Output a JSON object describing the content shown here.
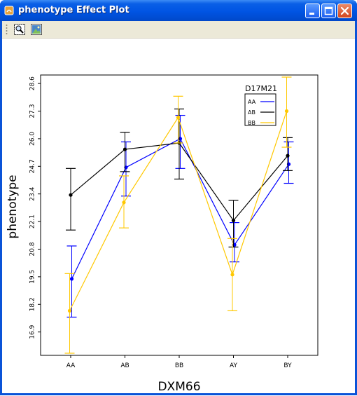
{
  "window": {
    "title": "phenotype Effect Plot",
    "toolbar": {
      "tools": [
        {
          "name": "zoom-tool-icon"
        },
        {
          "name": "save-image-icon"
        }
      ]
    }
  },
  "chart_data": {
    "type": "line",
    "title": "",
    "xlabel": "DXM66",
    "ylabel": "phenotype",
    "categories": [
      "AA",
      "AB",
      "BB",
      "AY",
      "BY"
    ],
    "yticks": [
      "16.9",
      "18.2",
      "19.5",
      "20.8",
      "22.1",
      "23.4",
      "24.7",
      "26.0",
      "27.3",
      "28.6"
    ],
    "ylim": [
      15.8,
      29.0
    ],
    "legend": {
      "title": "D17M21",
      "placement": "top-right"
    },
    "series": [
      {
        "name": "AA",
        "color": "#0000ff",
        "values": [
          19.4,
          24.65,
          26.0,
          21.0,
          24.8
        ],
        "err_low": [
          17.6,
          23.3,
          24.6,
          20.2,
          23.9
        ],
        "err_high": [
          20.95,
          25.85,
          27.1,
          22.05,
          25.85
        ]
      },
      {
        "name": "AB",
        "color": "#000000",
        "values": [
          23.35,
          25.5,
          25.8,
          22.15,
          25.2
        ],
        "err_low": [
          21.7,
          24.45,
          24.1,
          20.9,
          24.5
        ],
        "err_high": [
          24.6,
          26.3,
          27.4,
          23.1,
          26.05
        ]
      },
      {
        "name": "BB",
        "color": "#ffc800",
        "values": [
          17.9,
          23.0,
          27.0,
          19.6,
          27.3
        ],
        "err_low": [
          15.9,
          21.8,
          25.8,
          17.9,
          25.6
        ],
        "err_high": [
          19.65,
          24.25,
          28.0,
          21.3,
          28.9
        ]
      }
    ]
  }
}
